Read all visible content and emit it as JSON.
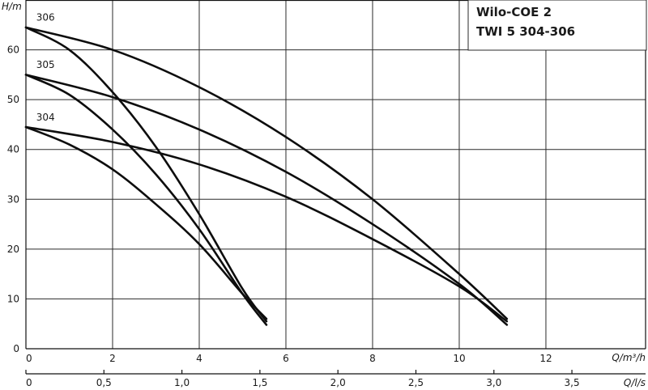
{
  "chart_data": {
    "type": "line",
    "title_lines": [
      "Wilo-COE 2",
      "TWI 5 304-306"
    ],
    "ylabel": "H/m",
    "xlabel": "Q/m³/h",
    "x2label": "Q/l/s",
    "xlim": [
      0,
      14.3
    ],
    "ylim": [
      0,
      70
    ],
    "x_ticks": [
      "0",
      "2",
      "4",
      "6",
      "8",
      "10",
      "12"
    ],
    "x_tick_values": [
      0,
      2,
      4,
      6,
      8,
      10,
      12
    ],
    "y_ticks": [
      "0",
      "10",
      "20",
      "30",
      "40",
      "50",
      "60"
    ],
    "y_tick_values": [
      0,
      10,
      20,
      30,
      40,
      50,
      60
    ],
    "x2_ticks": [
      "0",
      "0,5",
      "1,0",
      "1,5",
      "2,0",
      "2,5",
      "3,0",
      "3,5"
    ],
    "x2_tick_values": [
      0,
      0.5,
      1.0,
      1.5,
      2.0,
      2.5,
      3.0,
      3.5
    ],
    "grid": true,
    "series": [
      {
        "name": "306",
        "x": [
          0,
          1,
          2,
          3,
          4,
          5,
          5.55
        ],
        "y": [
          64.5,
          60,
          51.5,
          40.5,
          27,
          12,
          5.5
        ]
      },
      {
        "name": "306",
        "x": [
          0,
          2,
          4,
          6,
          8,
          10,
          11.1
        ],
        "y": [
          64.5,
          60,
          52.5,
          42.5,
          30,
          15,
          6
        ]
      },
      {
        "name": "305",
        "x": [
          0,
          1,
          2,
          3,
          4,
          5,
          5.55
        ],
        "y": [
          55,
          51,
          44,
          35,
          24,
          11,
          4.8
        ]
      },
      {
        "name": "305",
        "x": [
          0,
          2,
          4,
          6,
          8,
          10,
          11.1
        ],
        "y": [
          55,
          50.5,
          44,
          35.5,
          25,
          13,
          4.8
        ]
      },
      {
        "name": "304",
        "x": [
          0,
          1,
          2,
          3,
          4,
          5,
          5.55
        ],
        "y": [
          44.5,
          41,
          36,
          29,
          21,
          11,
          6
        ]
      },
      {
        "name": "304",
        "x": [
          0,
          2,
          4,
          6,
          8,
          10,
          11.1
        ],
        "y": [
          44.5,
          41.5,
          37,
          30.5,
          22,
          12.5,
          5.5
        ]
      }
    ],
    "series_labels": [
      {
        "text": "306",
        "x": 0.5,
        "y": 65.5
      },
      {
        "text": "305",
        "x": 0.5,
        "y": 56
      },
      {
        "text": "304",
        "x": 0.5,
        "y": 45.5
      }
    ]
  }
}
